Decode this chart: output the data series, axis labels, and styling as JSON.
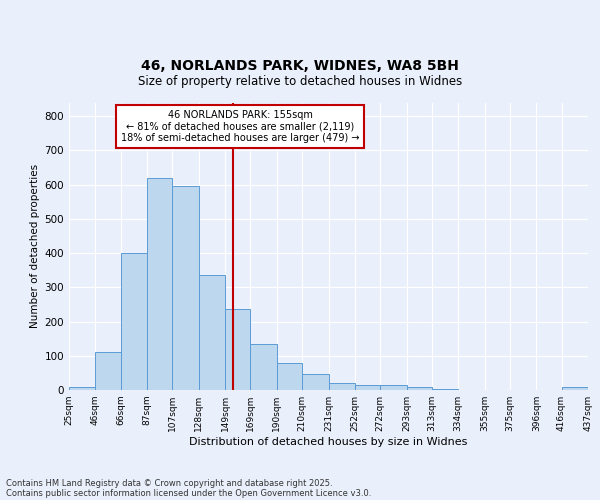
{
  "title_line1": "46, NORLANDS PARK, WIDNES, WA8 5BH",
  "title_line2": "Size of property relative to detached houses in Widnes",
  "xlabel": "Distribution of detached houses by size in Widnes",
  "ylabel": "Number of detached properties",
  "bin_edges": [
    25,
    46,
    66,
    87,
    107,
    128,
    149,
    169,
    190,
    210,
    231,
    252,
    272,
    293,
    313,
    334,
    355,
    375,
    396,
    416,
    437
  ],
  "bin_labels": [
    "25sqm",
    "46sqm",
    "66sqm",
    "87sqm",
    "107sqm",
    "128sqm",
    "149sqm",
    "169sqm",
    "190sqm",
    "210sqm",
    "231sqm",
    "252sqm",
    "272sqm",
    "293sqm",
    "313sqm",
    "334sqm",
    "355sqm",
    "375sqm",
    "396sqm",
    "416sqm",
    "437sqm"
  ],
  "counts": [
    8,
    110,
    400,
    620,
    597,
    335,
    237,
    135,
    78,
    47,
    20,
    15,
    15,
    8,
    2,
    0,
    0,
    0,
    0,
    8
  ],
  "bar_color": "#bdd7ee",
  "bar_edge_color": "#5b9bd5",
  "property_value": 155,
  "annotation_title": "46 NORLANDS PARK: 155sqm",
  "annotation_line2": "← 81% of detached houses are smaller (2,119)",
  "annotation_line3": "18% of semi-detached houses are larger (479) →",
  "vline_color": "#c00000",
  "annotation_box_edge_color": "#c00000",
  "ylim": [
    0,
    840
  ],
  "yticks": [
    0,
    100,
    200,
    300,
    400,
    500,
    600,
    700,
    800
  ],
  "footer_line1": "Contains HM Land Registry data © Crown copyright and database right 2025.",
  "footer_line2": "Contains public sector information licensed under the Open Government Licence v3.0.",
  "bg_color": "#eaf0fb",
  "plot_bg_color": "#eaf0fb"
}
